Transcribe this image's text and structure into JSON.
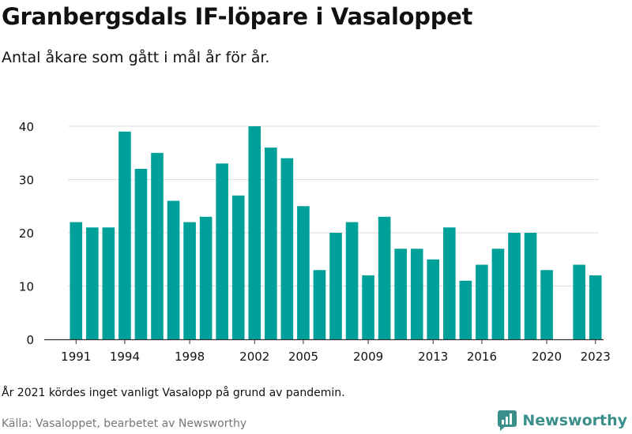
{
  "title": "Granbergsdals IF-löpare i Vasaloppet",
  "subtitle": "Antal åkare som gått i mål år för år.",
  "note": "År 2021 kördes inget vanligt Vasalopp på grund av pandemin.",
  "source": "Källa: Vasaloppet, bearbetet av Newsworthy",
  "brand": {
    "name": "Newsworthy",
    "icon": "newsworthy-logo-icon"
  },
  "colors": {
    "bar": "#00a09a",
    "grid": "#dddddd",
    "axis": "#333333",
    "brand": "#3a8f8a"
  },
  "chart_data": {
    "type": "bar",
    "x": [
      1991,
      1992,
      1993,
      1994,
      1995,
      1996,
      1997,
      1998,
      1999,
      2000,
      2001,
      2002,
      2003,
      2004,
      2005,
      2006,
      2007,
      2008,
      2009,
      2010,
      2011,
      2012,
      2013,
      2014,
      2015,
      2016,
      2017,
      2018,
      2019,
      2020,
      2021,
      2022,
      2023
    ],
    "values": [
      22,
      21,
      21,
      39,
      32,
      35,
      26,
      22,
      23,
      33,
      27,
      40,
      36,
      34,
      25,
      13,
      20,
      22,
      12,
      23,
      17,
      17,
      15,
      21,
      11,
      14,
      17,
      20,
      20,
      13,
      null,
      14,
      12
    ],
    "xticks": [
      "1991",
      "1994",
      "1998",
      "2002",
      "2005",
      "2009",
      "2013",
      "2016",
      "2020",
      "2023"
    ],
    "yticks": [
      "0",
      "10",
      "20",
      "30",
      "40"
    ],
    "ylim": [
      0,
      40
    ],
    "grid": true,
    "legend": "none"
  }
}
